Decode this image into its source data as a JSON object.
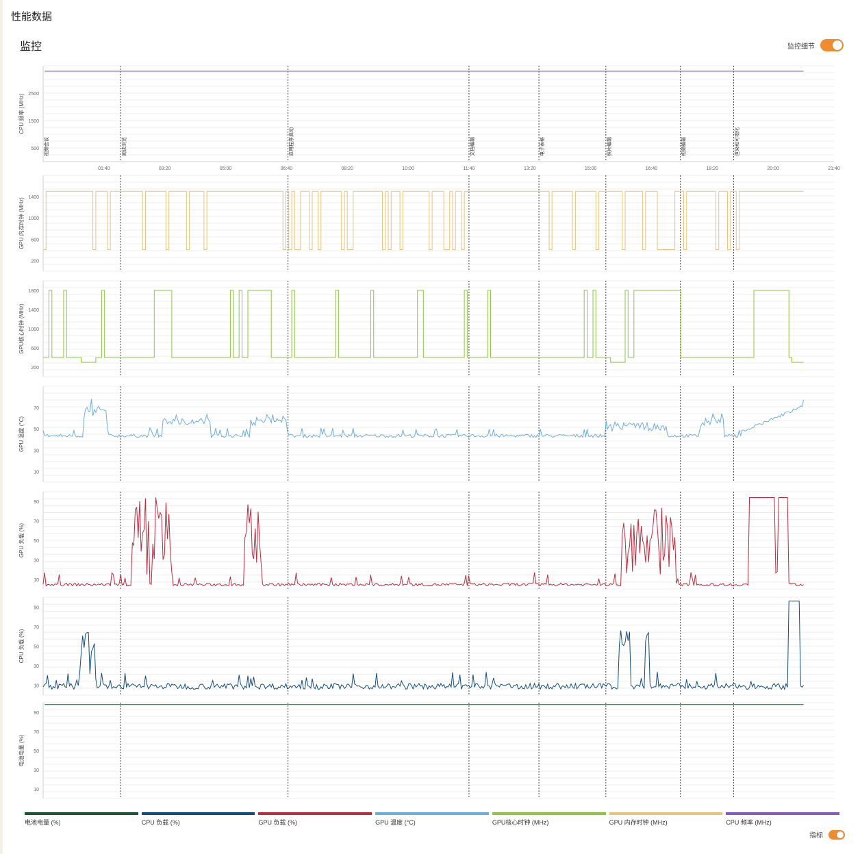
{
  "page": {
    "title": "性能数据"
  },
  "section": {
    "title": "监控"
  },
  "toggles": {
    "detail_label": "监控细节",
    "indicator_label": "指标"
  },
  "x_ticks": [
    "01:40",
    "03:20",
    "05:00",
    "06:40",
    "08:20",
    "10:00",
    "11:40",
    "13:20",
    "15:00",
    "16:40",
    "18:20",
    "20:00",
    "21:40"
  ],
  "events": [
    {
      "t": 0.0,
      "label": "视频会议"
    },
    {
      "t": 2.55,
      "label": "阅读浏览"
    },
    {
      "t": 8.05,
      "label": "应用程序启动"
    },
    {
      "t": 14.0,
      "label": "文档编辑"
    },
    {
      "t": 16.3,
      "label": "电子表格"
    },
    {
      "t": 18.5,
      "label": "照片编辑"
    },
    {
      "t": 20.95,
      "label": "视频编辑"
    },
    {
      "t": 22.7,
      "label": "渲染和可视化"
    }
  ],
  "legend": [
    {
      "label": "电池电量 (%)",
      "color": "#1e5631"
    },
    {
      "label": "CPU 负载 (%)",
      "color": "#0f4c81"
    },
    {
      "label": "GPU 负载 (%)",
      "color": "#c2283c"
    },
    {
      "label": "GPU 温度 (°C)",
      "color": "#6aaee0"
    },
    {
      "label": "GPU核心时钟 (MHz)",
      "color": "#8cc63f"
    },
    {
      "label": "GPU 内存时钟 (MHz)",
      "color": "#e8c47a"
    },
    {
      "label": "CPU 频率 (MHz)",
      "color": "#8b55c6"
    }
  ],
  "chart_data": [
    {
      "type": "line",
      "ylabel": "CPU 频率 (MHz)",
      "yticks": [
        500,
        1500,
        2500
      ],
      "ylim": [
        0,
        3500
      ],
      "series": [
        {
          "color": "#8b55c6",
          "values": [
            3300,
            3300
          ]
        }
      ],
      "show_x_ticks": true,
      "show_event_labels": true
    },
    {
      "type": "line",
      "ylabel": "GPU 内存时钟 (MHz)",
      "yticks": [
        200,
        600,
        1000,
        1400
      ],
      "ylim": [
        0,
        1800
      ],
      "series": [
        {
          "color": "#e8c47a",
          "pattern": "memclock",
          "high": 1500,
          "low": 405
        }
      ]
    },
    {
      "type": "line",
      "ylabel": "GPU核心时钟 (MHz)",
      "yticks": [
        200,
        600,
        1000,
        1400,
        1800
      ],
      "ylim": [
        0,
        2000
      ],
      "series": [
        {
          "color": "#8cc63f",
          "pattern": "coreclock",
          "high": 1800,
          "low": 400
        }
      ]
    },
    {
      "type": "line",
      "ylabel": "GPU 温度 (°C)",
      "yticks": [
        10,
        30,
        50,
        70
      ],
      "ylim": [
        0,
        90
      ],
      "series": [
        {
          "color": "#6aaee0",
          "pattern": "temp"
        }
      ]
    },
    {
      "type": "line",
      "ylabel": "GPU 负载 (%)",
      "yticks": [
        10,
        30,
        50,
        70,
        90
      ],
      "ylim": [
        0,
        100
      ],
      "series": [
        {
          "color": "#c2283c",
          "pattern": "gpuload"
        }
      ]
    },
    {
      "type": "line",
      "ylabel": "CPU 负载 (%)",
      "yticks": [
        10,
        30,
        50,
        70,
        90
      ],
      "ylim": [
        0,
        100
      ],
      "series": [
        {
          "color": "#0f4c81",
          "pattern": "cpuload"
        }
      ]
    },
    {
      "type": "line",
      "ylabel": "电池电量 (%)",
      "yticks": [
        10,
        30,
        50,
        70,
        90
      ],
      "ylim": [
        0,
        100
      ],
      "series": [
        {
          "color": "#1e5631",
          "values": [
            98,
            98
          ]
        }
      ]
    }
  ]
}
